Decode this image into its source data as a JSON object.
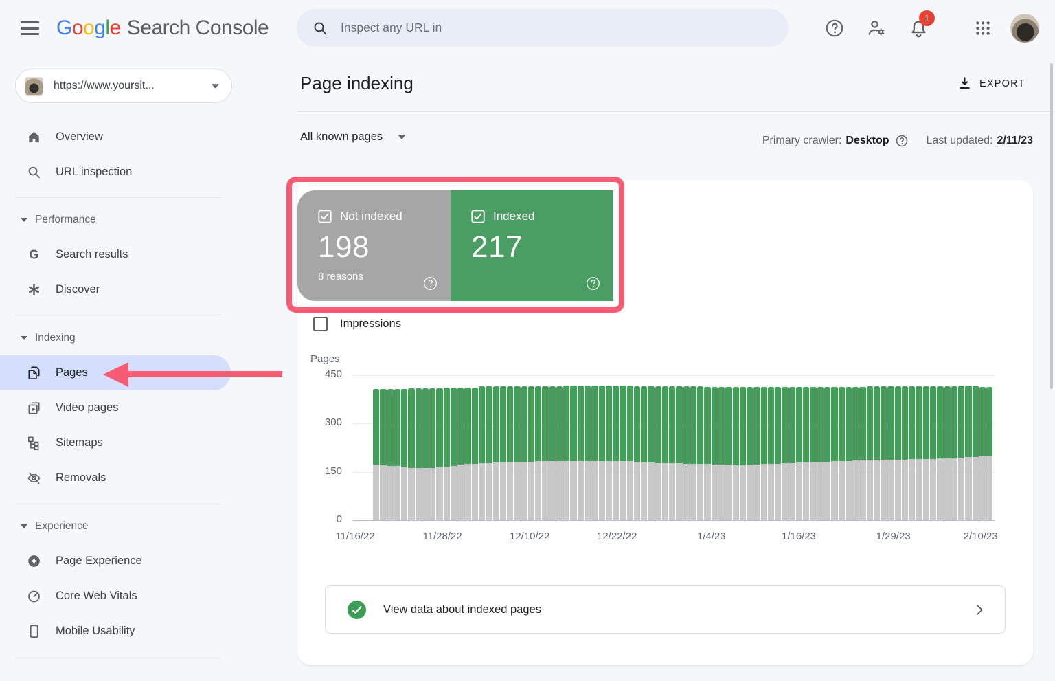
{
  "app": {
    "background": "#f5f7fb"
  },
  "header": {
    "logo": {
      "brand_letters": [
        "G",
        "o",
        "o",
        "g",
        "l",
        "e"
      ],
      "brand_colors": [
        "#4285F4",
        "#EA4335",
        "#FBBC05",
        "#4285F4",
        "#34A853",
        "#EA4335"
      ],
      "product": "Search Console"
    },
    "search": {
      "placeholder": "Inspect any URL in"
    },
    "notifications": {
      "badge_count": "1"
    }
  },
  "sidebar": {
    "property": {
      "label": "https://www.yoursit..."
    },
    "selected_item": "Pages",
    "items": [
      {
        "label": "Overview"
      },
      {
        "label": "URL inspection"
      },
      {
        "label": "Performance"
      },
      {
        "label": "Search results"
      },
      {
        "label": "Discover"
      },
      {
        "label": "Indexing"
      },
      {
        "label": "Pages"
      },
      {
        "label": "Video pages"
      },
      {
        "label": "Sitemaps"
      },
      {
        "label": "Removals"
      },
      {
        "label": "Experience"
      },
      {
        "label": "Page Experience"
      },
      {
        "label": "Core Web Vitals"
      },
      {
        "label": "Mobile Usability"
      }
    ]
  },
  "main": {
    "title": "Page indexing",
    "export_label": "EXPORT",
    "filter": {
      "label": "All known pages"
    },
    "meta": {
      "crawler_label": "Primary crawler:",
      "crawler_value": "Desktop",
      "updated_label": "Last updated:",
      "updated_value": "2/11/23"
    },
    "cards": {
      "not_indexed": {
        "label": "Not indexed",
        "value": "198",
        "subtext": "8 reasons",
        "color": "#a6a6a6"
      },
      "indexed": {
        "label": "Indexed",
        "value": "217",
        "color": "#4b9e63"
      }
    },
    "impressions_label": "Impressions",
    "view_data": {
      "label": "View data about indexed pages"
    }
  },
  "chart_data": {
    "type": "bar",
    "stacked": true,
    "title": "",
    "xlabel": "",
    "ylabel": "Pages",
    "ylim": [
      0,
      450
    ],
    "y_ticks": [
      0,
      150,
      300,
      450
    ],
    "grid": true,
    "legend_position": "cards-above-chart",
    "x_tick_labels": [
      "11/16/22",
      "11/28/22",
      "12/10/22",
      "12/22/22",
      "1/4/23",
      "1/16/23",
      "1/29/23",
      "2/10/23"
    ],
    "x_tick_days": [
      0,
      12,
      24,
      36,
      49,
      61,
      74,
      86
    ],
    "x_range": [
      "11/16/22",
      "2/11/23"
    ],
    "series": [
      {
        "name": "Not indexed",
        "color": "#c8c8c8",
        "values": [
          172,
          170,
          168,
          168,
          166,
          163,
          163,
          162,
          163,
          164,
          166,
          168,
          172,
          174,
          175,
          177,
          178,
          179,
          180,
          181,
          181,
          182,
          182,
          183,
          183,
          183,
          183,
          184,
          184,
          184,
          184,
          184,
          184,
          184,
          184,
          184,
          184,
          181,
          180,
          179,
          178,
          178,
          177,
          177,
          176,
          176,
          175,
          174,
          173,
          172,
          172,
          171,
          171,
          172,
          173,
          174,
          175,
          176,
          177,
          178,
          179,
          180,
          181,
          181,
          182,
          183,
          184,
          184,
          185,
          185,
          186,
          186,
          187,
          187,
          188,
          188,
          189,
          189,
          190,
          190,
          191,
          192,
          193,
          194,
          196,
          197,
          198,
          198
        ]
      },
      {
        "name": "Indexed",
        "color": "#429e59",
        "values": [
          236,
          238,
          240,
          240,
          242,
          247,
          247,
          248,
          247,
          246,
          246,
          244,
          240,
          238,
          237,
          238,
          237,
          236,
          235,
          234,
          235,
          234,
          234,
          233,
          233,
          233,
          233,
          233,
          233,
          233,
          233,
          233,
          233,
          233,
          233,
          233,
          233,
          234,
          235,
          236,
          237,
          237,
          238,
          238,
          239,
          239,
          240,
          240,
          241,
          242,
          242,
          243,
          243,
          242,
          240,
          239,
          238,
          237,
          236,
          235,
          234,
          234,
          233,
          233,
          232,
          231,
          230,
          230,
          230,
          230,
          229,
          229,
          228,
          228,
          227,
          228,
          227,
          227,
          226,
          226,
          225,
          224,
          224,
          223,
          222,
          221,
          217,
          217
        ]
      }
    ]
  },
  "annotations": {
    "highlight_color": "#f85c74",
    "arrow_target": "Pages sidebar item",
    "box_target": "Not indexed / Indexed cards"
  },
  "icons": {
    "hamburger": "three horizontal bars",
    "search": "magnifier",
    "help": "question mark in circle",
    "user-settings": "person with gear",
    "notifications": "bell",
    "apps": "3x3 dot grid",
    "avatar": "profile photo",
    "home": "house",
    "search-results": "letter G",
    "discover": "six-spoke asterisk",
    "pages": "stacked documents",
    "video-pages": "document with play button",
    "sitemaps": "node tree",
    "removals": "eye with slash",
    "page-experience": "four-point star in filled circle",
    "core-web-vitals": "gauge",
    "mobile-usability": "smartphone outline",
    "export": "download arrow over bar",
    "dropdown": "caret down",
    "chevron": "chevron right",
    "checkbox-checked": "white outlined checkbox with check",
    "check-circle": "white check in green circle"
  }
}
